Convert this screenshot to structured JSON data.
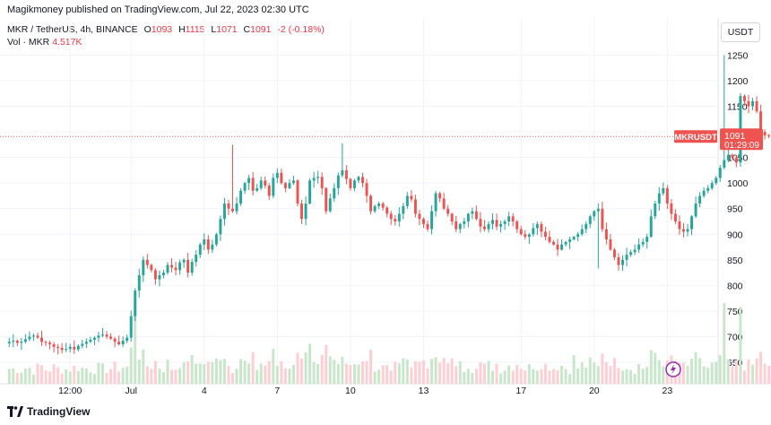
{
  "header": {
    "text": "Magikmoney published on TradingView.com, Jul 22, 2023 02:30 UTC"
  },
  "legend": {
    "symbol": "MKR / TetherUS, 4h, BINANCE",
    "o_label": "O",
    "o": "1093",
    "h_label": "H",
    "h": "1115",
    "l_label": "L",
    "l": "1071",
    "c_label": "C",
    "c": "1091",
    "change": "-2 (-0.18%)",
    "vol_label": "Vol · MKR",
    "vol": "4.517K"
  },
  "currency_button": "USDT",
  "price_tag": {
    "symbol": "MKRUSDT",
    "price": "1091",
    "countdown": "01:29:09"
  },
  "footer": {
    "brand": "TradingView"
  },
  "colors": {
    "up": "#26a69a",
    "down": "#ef5350",
    "up_vol": "#c8e6c9",
    "down_vol": "#ffcdd2",
    "grid": "#f0f3fa"
  },
  "chart_data": {
    "type": "candlestick",
    "yticks": [
      650,
      700,
      750,
      800,
      850,
      900,
      950,
      1000,
      1050,
      1100,
      1150,
      1200,
      1250
    ],
    "ylim": [
      608,
      1270
    ],
    "xlabels": [
      {
        "label": "12:00",
        "bar": 15
      },
      {
        "label": "Jul",
        "bar": 30
      },
      {
        "label": "4",
        "bar": 48
      },
      {
        "label": "7",
        "bar": 66
      },
      {
        "label": "10",
        "bar": 84
      },
      {
        "label": "13",
        "bar": 102
      },
      {
        "label": "17",
        "bar": 126
      },
      {
        "label": "20",
        "bar": 144
      },
      {
        "label": "23",
        "bar": 162
      }
    ],
    "total_slots": 175,
    "close_series": [
      690,
      692,
      688,
      690,
      695,
      700,
      702,
      698,
      690,
      688,
      685,
      680,
      678,
      674,
      676,
      680,
      675,
      682,
      686,
      690,
      694,
      698,
      702,
      704,
      700,
      696,
      690,
      685,
      692,
      698,
      740,
      790,
      820,
      850,
      840,
      830,
      812,
      820,
      825,
      840,
      835,
      830,
      845,
      850,
      825,
      846,
      860,
      880,
      890,
      870,
      880,
      900,
      930,
      960,
      950,
      945,
      960,
      985,
      1000,
      1010,
      985,
      990,
      1005,
      995,
      975,
      1010,
      1020,
      1000,
      990,
      1000,
      1005,
      960,
      930,
      960,
      1005,
      1010,
      1012,
      990,
      945,
      970,
      990,
      1015,
      1025,
      1008,
      990,
      1005,
      1012,
      1000,
      975,
      945,
      955,
      960,
      952,
      940,
      930,
      925,
      940,
      955,
      975,
      968,
      940,
      930,
      920,
      910,
      945,
      980,
      970,
      950,
      940,
      925,
      910,
      920,
      925,
      940,
      945,
      930,
      915,
      910,
      920,
      928,
      915,
      920,
      925,
      935,
      925,
      910,
      900,
      895,
      900,
      912,
      920,
      905,
      895,
      885,
      880,
      870,
      880,
      885,
      890,
      895,
      900,
      910,
      920,
      935,
      945,
      950,
      910,
      890,
      870,
      855,
      840,
      850,
      860,
      865,
      870,
      880,
      885,
      895,
      935,
      960,
      980,
      990,
      960,
      940,
      925,
      910,
      905,
      910,
      935,
      960,
      975,
      985,
      990,
      1000,
      1010,
      1030,
      1045,
      1055,
      1050,
      1040,
      1170,
      1160,
      1150,
      1160,
      1140,
      1100,
      1093,
      1091
    ]
  }
}
